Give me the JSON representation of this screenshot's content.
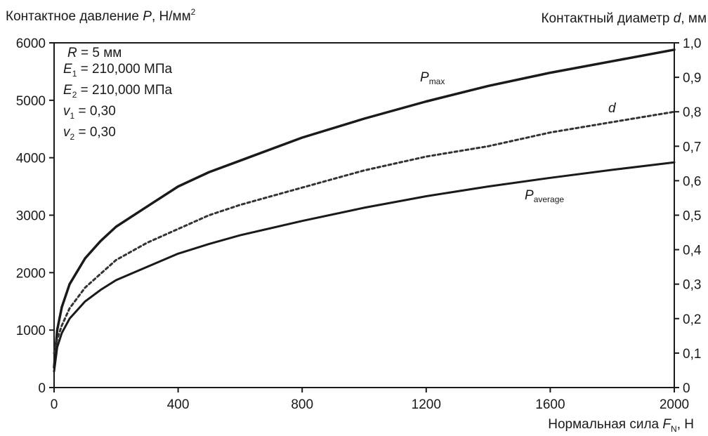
{
  "chart_data": {
    "type": "line",
    "left_axis_title": "Контактное давление",
    "left_axis_symbol": "P",
    "left_axis_unit": "Н/мм",
    "left_axis_unit_sup": "2",
    "right_axis_title": "Контактный диаметр",
    "right_axis_symbol": "d",
    "right_axis_unit": "мм",
    "x_axis_title": "Нормальная сила",
    "x_axis_symbol": "F",
    "x_axis_symbol_sub": "N",
    "x_axis_unit": "Н",
    "x_ticks": [
      "0",
      "400",
      "800",
      "1200",
      "1600",
      "2000"
    ],
    "y_left_ticks": [
      "0",
      "1000",
      "2000",
      "3000",
      "4000",
      "5000",
      "6000"
    ],
    "y_right_ticks": [
      "0",
      "0,1",
      "0,2",
      "0,3",
      "0,4",
      "0,5",
      "0,6",
      "0,7",
      "0,8",
      "0,9",
      "1,0"
    ],
    "xlim": [
      0,
      2000
    ],
    "ylim_left": [
      0,
      6000
    ],
    "ylim_right": [
      0,
      1.0
    ],
    "grid": false,
    "legend": "none; curve labels placed next to each curve",
    "parameters": [
      {
        "symbol": "R",
        "sub": "",
        "value": "= 5 мм"
      },
      {
        "symbol": "E",
        "sub": "1",
        "value": "= 210,000 МПа"
      },
      {
        "symbol": "E",
        "sub": "2",
        "value": "= 210,000 МПа"
      },
      {
        "symbol": "v",
        "sub": "1",
        "value": "= 0,30"
      },
      {
        "symbol": "v",
        "sub": "2",
        "value": "= 0,30"
      }
    ],
    "series": [
      {
        "name": "P",
        "name_sub": "max",
        "axis": "left",
        "style": "solid-thick",
        "x": [
          0,
          10,
          25,
          50,
          100,
          150,
          200,
          300,
          400,
          500,
          600,
          800,
          1000,
          1200,
          1400,
          1600,
          1800,
          2000
        ],
        "y": [
          350,
          1000,
          1400,
          1800,
          2250,
          2550,
          2800,
          3150,
          3500,
          3750,
          3950,
          4350,
          4680,
          4980,
          5250,
          5480,
          5680,
          5880
        ]
      },
      {
        "name": "d",
        "name_sub": "",
        "axis": "right",
        "style": "dashed",
        "x": [
          0,
          10,
          25,
          50,
          100,
          150,
          200,
          300,
          400,
          500,
          600,
          800,
          1000,
          1200,
          1400,
          1600,
          1800,
          2000
        ],
        "y": [
          0.1,
          0.14,
          0.18,
          0.23,
          0.29,
          0.33,
          0.37,
          0.42,
          0.46,
          0.5,
          0.53,
          0.58,
          0.63,
          0.67,
          0.7,
          0.74,
          0.77,
          0.8
        ]
      },
      {
        "name": "P",
        "name_sub": "average",
        "axis": "left",
        "style": "solid",
        "x": [
          0,
          10,
          25,
          50,
          100,
          150,
          200,
          300,
          400,
          500,
          600,
          800,
          1000,
          1200,
          1400,
          1600,
          1800,
          2000
        ],
        "y": [
          280,
          700,
          950,
          1200,
          1500,
          1700,
          1870,
          2100,
          2330,
          2500,
          2650,
          2900,
          3130,
          3330,
          3500,
          3650,
          3790,
          3920
        ]
      }
    ]
  }
}
